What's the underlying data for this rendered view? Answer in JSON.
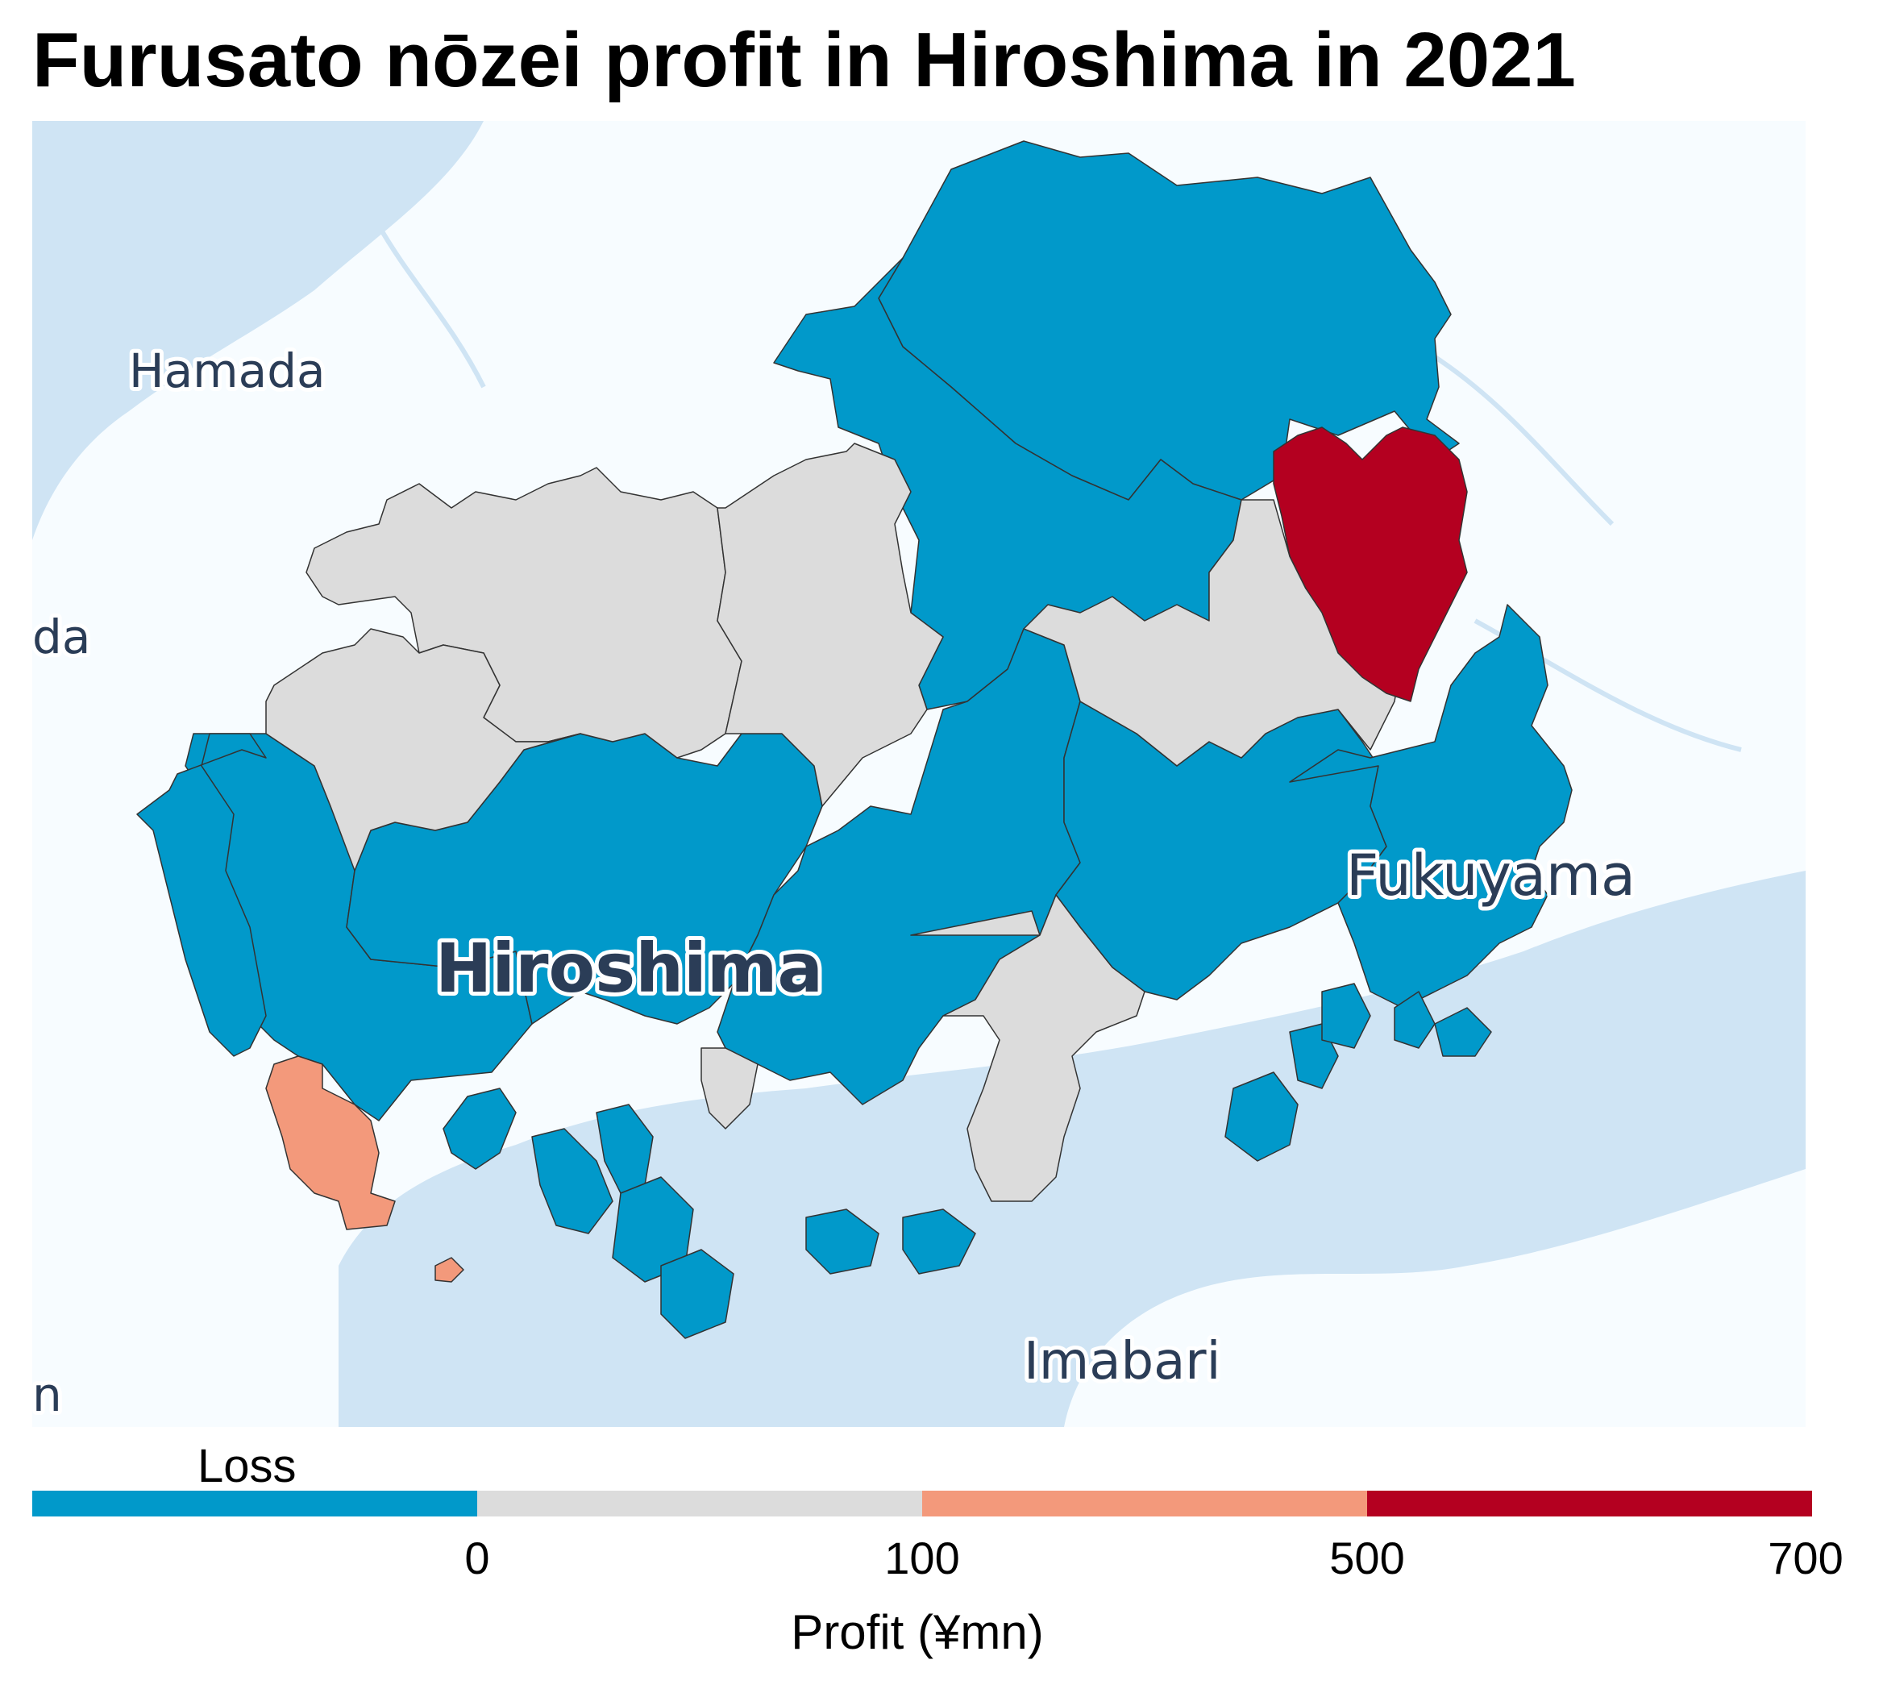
{
  "title": "Furusato nōzei profit in Hiroshima in 2021",
  "map": {
    "cities": [
      {
        "name": "Hamada"
      },
      {
        "name": "Hiroshima"
      },
      {
        "name": "Fukuyama"
      },
      {
        "name": "Imabari"
      }
    ],
    "edge_label_left": "da",
    "edge_label_bottom": "n"
  },
  "legend": {
    "loss_label": "Loss",
    "axis_title": "Profit (¥mn)",
    "ticks": [
      "0",
      "100",
      "500",
      "700"
    ],
    "bins": [
      {
        "range": "Loss",
        "color": "#0199ca"
      },
      {
        "range": "0–100",
        "color": "#dcdcdc"
      },
      {
        "range": "100–500",
        "color": "#f3997b"
      },
      {
        "range": "500–700",
        "color": "#b40020"
      }
    ]
  },
  "colors": {
    "sea": "#cfe4f4",
    "land": "#f7fcff",
    "loss": "#0199ca",
    "low": "#dcdcdc",
    "mid": "#f3997b",
    "high": "#b40020"
  }
}
